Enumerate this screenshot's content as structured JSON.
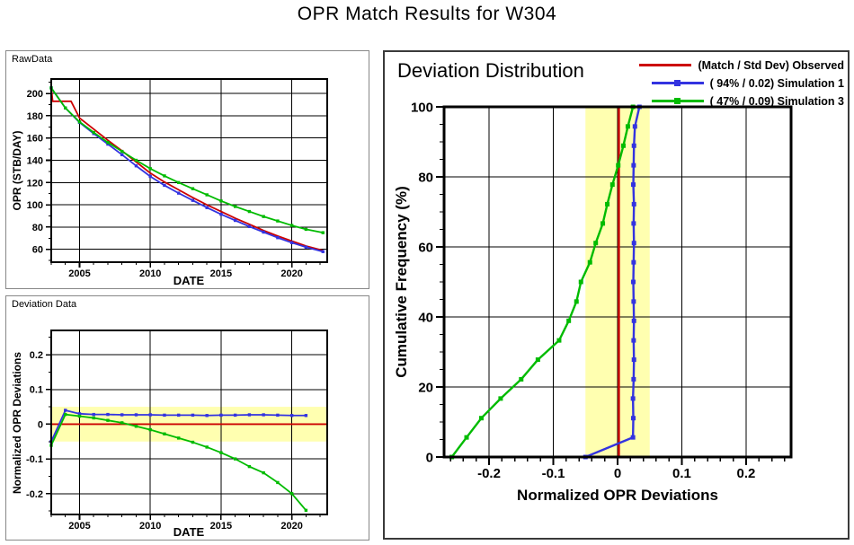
{
  "page_title": "OPR Match Results for W304",
  "colors": {
    "observed": "#CC0000",
    "simulation1": "#3333E0",
    "simulation3": "#00BB00",
    "band": "#FFFFB0",
    "grid": "#000000",
    "panel_border_small": "#878787",
    "panel_border_big": "#3A3A3A"
  },
  "chart_data": [
    {
      "type": "line",
      "panel_label": "RawData",
      "xlabel": "DATE",
      "ylabel": "OPR (STB/DAY)",
      "xlim": [
        2003,
        2022.5
      ],
      "ylim": [
        48.5,
        213
      ],
      "xticks": [
        2005,
        2010,
        2015,
        2020
      ],
      "xtick_labels": [
        "2005",
        "2010",
        "2015",
        "2020"
      ],
      "yticks": [
        60,
        80,
        100,
        120,
        140,
        160,
        180,
        200
      ],
      "ytick_labels": [
        "60",
        "80",
        "100",
        "120",
        "140",
        "160",
        "180",
        "200"
      ],
      "xminor": 1,
      "yminor": 10,
      "grid": true,
      "legend_position": "none",
      "series": [
        {
          "name": "Observed",
          "color": "#CC0000",
          "marker": false,
          "x": [
            2003,
            2003.1,
            2004.4,
            2005,
            2006,
            2007,
            2008,
            2009,
            2010,
            2011,
            2012,
            2013,
            2014,
            2015,
            2016,
            2017,
            2018,
            2019,
            2020,
            2021,
            2022.2
          ],
          "y": [
            205,
            193,
            193,
            178,
            168,
            158,
            148.5,
            138.5,
            128.5,
            120.5,
            113.5,
            106.5,
            100,
            94,
            88,
            82.5,
            77,
            72,
            67.5,
            63,
            59
          ]
        },
        {
          "name": "Simulation 1",
          "color": "#3333E0",
          "marker": true,
          "x": [
            2003,
            2004,
            2005,
            2006,
            2007,
            2008,
            2009,
            2010,
            2011,
            2012,
            2013,
            2014,
            2015,
            2016,
            2017,
            2018,
            2019,
            2020,
            2021,
            2022.2
          ],
          "y": [
            205,
            187,
            174,
            164,
            154.5,
            145,
            135,
            125.5,
            117.5,
            110.5,
            104,
            97.5,
            91.5,
            86,
            80.5,
            75.5,
            70.5,
            66,
            62,
            58
          ]
        },
        {
          "name": "Simulation 3",
          "color": "#00BB00",
          "marker": true,
          "x": [
            2003,
            2004,
            2005,
            2006,
            2007,
            2008,
            2009,
            2010,
            2011,
            2012,
            2013,
            2014,
            2015,
            2016,
            2017,
            2018,
            2019,
            2020,
            2021,
            2022.2
          ],
          "y": [
            205,
            187,
            174.5,
            165,
            156,
            148,
            140,
            132.5,
            126,
            120,
            114.5,
            109,
            103.5,
            98.5,
            94,
            89.5,
            85.5,
            81.5,
            78,
            75
          ]
        }
      ]
    },
    {
      "type": "line",
      "panel_label": "Deviation Data",
      "xlabel": "DATE",
      "ylabel": "Normalized OPR Deviations",
      "xlim": [
        2003,
        2022.5
      ],
      "ylim": [
        -0.26,
        0.27
      ],
      "xticks": [
        2005,
        2010,
        2015,
        2020
      ],
      "xtick_labels": [
        "2005",
        "2010",
        "2015",
        "2020"
      ],
      "yticks": [
        -0.2,
        -0.1,
        0,
        0.1,
        0.2
      ],
      "ytick_labels": [
        "-0.2",
        "-0.1",
        "0",
        "0.1",
        "0.2"
      ],
      "xminor": 1,
      "yminor": 0.05,
      "grid": true,
      "band": {
        "axis": "y",
        "min": -0.05,
        "max": 0.05,
        "color": "#FFFFB0"
      },
      "series": [
        {
          "name": "Observed zero line",
          "color": "#CC0000",
          "marker": false,
          "x": [
            2003,
            2022.5
          ],
          "y": [
            0,
            0
          ]
        },
        {
          "name": "Simulation 1",
          "color": "#3333E0",
          "marker": true,
          "x": [
            2003,
            2004,
            2005,
            2006,
            2007,
            2008,
            2009,
            2010,
            2011,
            2012,
            2013,
            2014,
            2015,
            2016,
            2017,
            2018,
            2019,
            2020,
            2021
          ],
          "y": [
            -0.05,
            0.04,
            0.03,
            0.028,
            0.028,
            0.027,
            0.027,
            0.027,
            0.026,
            0.026,
            0.026,
            0.025,
            0.026,
            0.026,
            0.027,
            0.027,
            0.026,
            0.025,
            0.025
          ]
        },
        {
          "name": "Simulation 3",
          "color": "#00BB00",
          "marker": true,
          "x": [
            2003,
            2004,
            2005,
            2006,
            2007,
            2008,
            2009,
            2010,
            2011,
            2012,
            2013,
            2014,
            2015,
            2016,
            2017,
            2018,
            2019,
            2020,
            2021
          ],
          "y": [
            -0.061,
            0.028,
            0.023,
            0.018,
            0.011,
            0.004,
            -0.006,
            -0.016,
            -0.028,
            -0.04,
            -0.052,
            -0.066,
            -0.082,
            -0.1,
            -0.122,
            -0.14,
            -0.168,
            -0.2,
            -0.248
          ]
        }
      ]
    },
    {
      "type": "line",
      "title": "Deviation Distribution",
      "xlabel": "Normalized OPR Deviations",
      "ylabel": "Cumulative Frequency (%)",
      "xlim": [
        -0.27,
        0.27
      ],
      "ylim": [
        0,
        100
      ],
      "xticks": [
        -0.2,
        -0.1,
        0,
        0.1,
        0.2
      ],
      "xtick_labels": [
        "-0.2",
        "-0.1",
        "0",
        "0.1",
        "0.2"
      ],
      "yticks": [
        0,
        20,
        40,
        60,
        80,
        100
      ],
      "ytick_labels": [
        "0",
        "20",
        "40",
        "60",
        "80",
        "100"
      ],
      "xminor": 0.02,
      "yminor": 5,
      "grid": true,
      "band": {
        "axis": "x",
        "min": -0.05,
        "max": 0.05,
        "color": "#FFFFB0"
      },
      "legend_position": "top-right",
      "legend": [
        {
          "label": "(Match / Std Dev) Observed",
          "color": "#CC0000",
          "marker": false
        },
        {
          "label": "( 94% / 0.02) Simulation 1",
          "color": "#3333E0",
          "marker": true
        },
        {
          "label": "( 47% / 0.09) Simulation 3",
          "color": "#00BB00",
          "marker": true
        }
      ],
      "series": [
        {
          "name": "Observed",
          "color": "#CC0000",
          "marker": false,
          "x": [
            0.002,
            0.002
          ],
          "y": [
            0,
            100
          ]
        },
        {
          "name": "Simulation 1",
          "color": "#3333E0",
          "marker": true,
          "x": [
            -0.05,
            0.024,
            0.0245,
            0.024,
            0.025,
            0.0255,
            0.025,
            0.0255,
            0.025,
            0.0245,
            0.025,
            0.0255,
            0.025,
            0.0255,
            0.0245,
            0.025,
            0.0255,
            0.027,
            0.034
          ],
          "y": [
            0,
            5.6,
            11.1,
            16.7,
            22.2,
            27.8,
            33.3,
            38.9,
            44.4,
            50,
            55.6,
            61.1,
            66.7,
            72.2,
            77.8,
            83.3,
            88.9,
            94.4,
            100
          ]
        },
        {
          "name": "Simulation 3",
          "color": "#00BB00",
          "marker": true,
          "x": [
            -0.258,
            -0.235,
            -0.212,
            -0.182,
            -0.15,
            -0.124,
            -0.091,
            -0.076,
            -0.064,
            -0.057,
            -0.043,
            -0.034,
            -0.023,
            -0.016,
            -0.008,
            0.001,
            0.009,
            0.016,
            0.024
          ],
          "y": [
            0,
            5.6,
            11.1,
            16.7,
            22.2,
            27.8,
            33.3,
            38.9,
            44.4,
            50,
            55.6,
            61.1,
            66.7,
            72.2,
            77.8,
            83.3,
            88.9,
            94.4,
            100
          ]
        }
      ]
    }
  ]
}
